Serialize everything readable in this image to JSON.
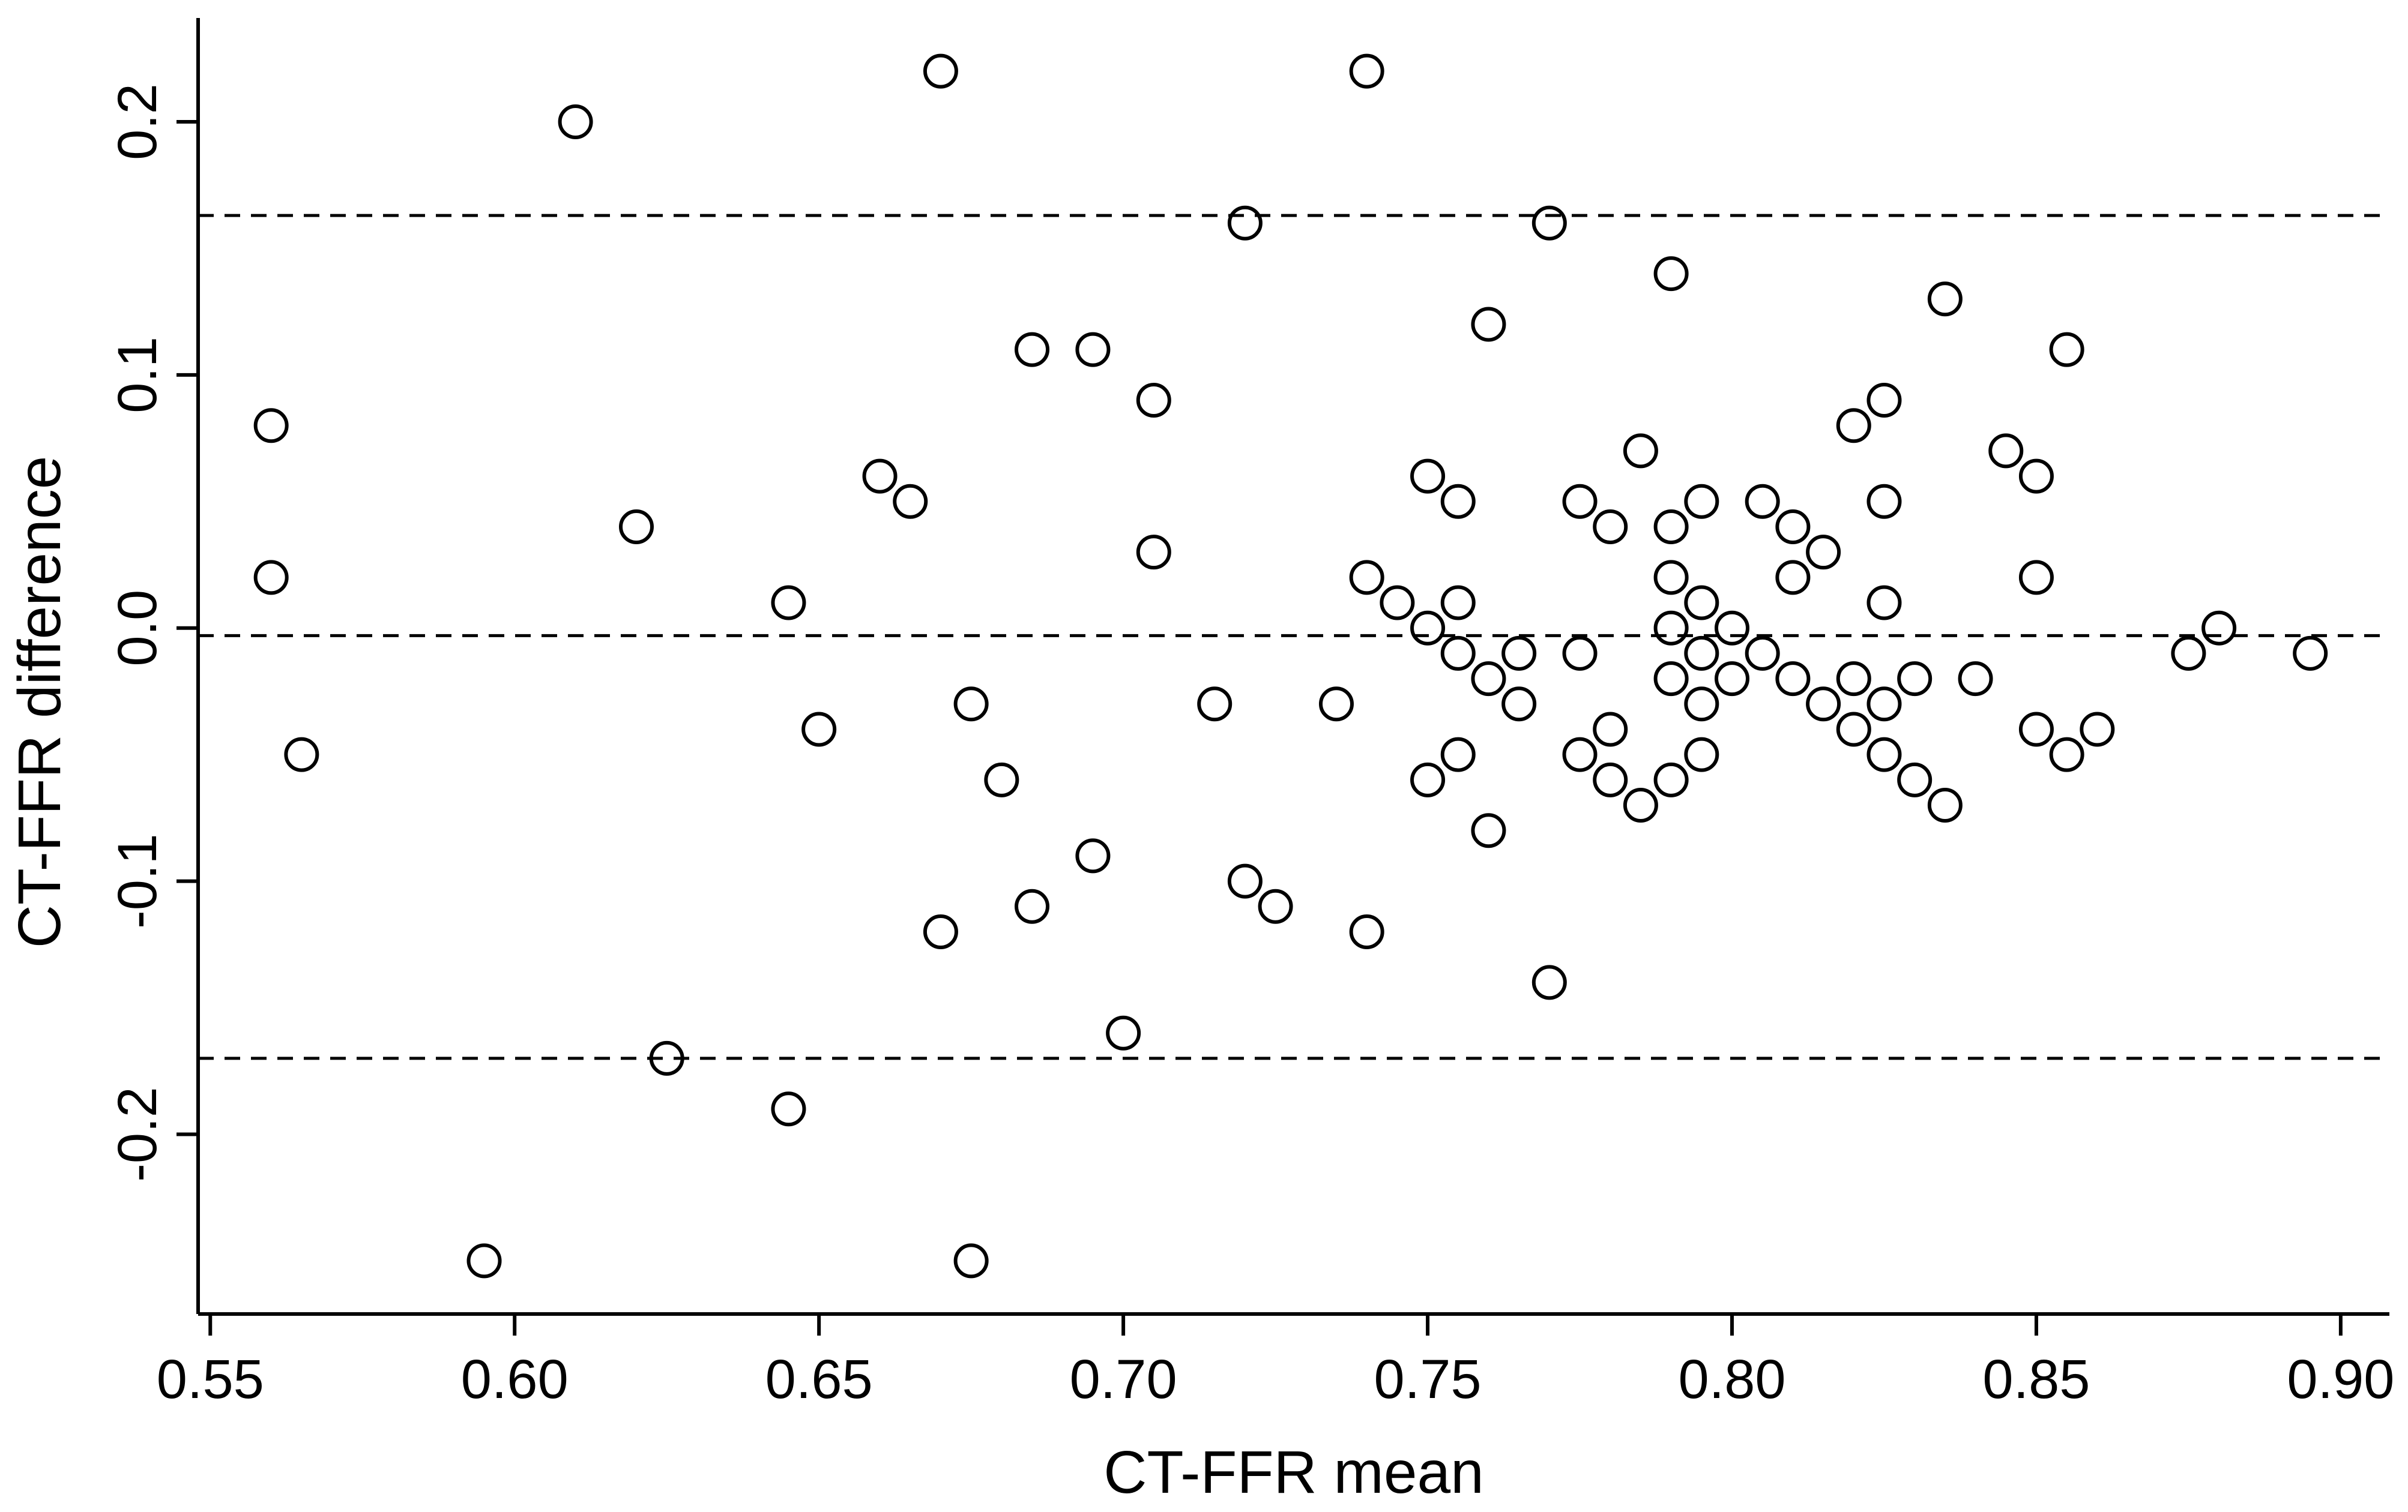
{
  "chart_data": {
    "type": "scatter",
    "title": "",
    "xlabel": "CT-FFR mean",
    "ylabel": "CT-FFR difference",
    "xlim": [
      0.548,
      0.908
    ],
    "ylim": [
      -0.271,
      0.241
    ],
    "x_ticks": [
      0.55,
      0.6,
      0.65,
      0.7,
      0.75,
      0.8,
      0.85,
      0.9
    ],
    "x_tick_labels": [
      "0.55",
      "0.60",
      "0.65",
      "0.70",
      "0.75",
      "0.80",
      "0.85",
      "0.90"
    ],
    "y_ticks": [
      -0.2,
      -0.1,
      0.0,
      0.1,
      0.2
    ],
    "y_tick_labels": [
      "-0.2",
      "-0.1",
      "0.0",
      "0.1",
      "0.2"
    ],
    "grid": false,
    "legend": "none",
    "reference_lines": [
      {
        "kind": "upper limit of agreement",
        "y": 0.163
      },
      {
        "kind": "mean difference",
        "y": -0.003
      },
      {
        "kind": "lower limit of agreement",
        "y": -0.17
      }
    ],
    "points": [
      [
        0.56,
        0.08
      ],
      [
        0.56,
        0.02
      ],
      [
        0.565,
        -0.05
      ],
      [
        0.595,
        -0.25
      ],
      [
        0.61,
        0.2
      ],
      [
        0.62,
        0.04
      ],
      [
        0.625,
        -0.17
      ],
      [
        0.645,
        0.01
      ],
      [
        0.645,
        -0.19
      ],
      [
        0.65,
        -0.04
      ],
      [
        0.66,
        0.06
      ],
      [
        0.665,
        0.05
      ],
      [
        0.67,
        0.22
      ],
      [
        0.67,
        -0.12
      ],
      [
        0.675,
        -0.03
      ],
      [
        0.675,
        -0.25
      ],
      [
        0.68,
        -0.06
      ],
      [
        0.685,
        0.11
      ],
      [
        0.685,
        -0.11
      ],
      [
        0.695,
        0.11
      ],
      [
        0.695,
        -0.09
      ],
      [
        0.7,
        -0.16
      ],
      [
        0.705,
        0.09
      ],
      [
        0.705,
        0.03
      ],
      [
        0.715,
        -0.03
      ],
      [
        0.72,
        0.16
      ],
      [
        0.72,
        -0.1
      ],
      [
        0.725,
        -0.11
      ],
      [
        0.735,
        -0.03
      ],
      [
        0.74,
        0.22
      ],
      [
        0.74,
        0.02
      ],
      [
        0.74,
        -0.12
      ],
      [
        0.745,
        0.01
      ],
      [
        0.75,
        0.06
      ],
      [
        0.75,
        0.0
      ],
      [
        0.75,
        -0.06
      ],
      [
        0.755,
        0.05
      ],
      [
        0.755,
        0.01
      ],
      [
        0.755,
        -0.01
      ],
      [
        0.755,
        -0.05
      ],
      [
        0.76,
        0.12
      ],
      [
        0.76,
        -0.02
      ],
      [
        0.76,
        -0.08
      ],
      [
        0.765,
        -0.01
      ],
      [
        0.765,
        -0.03
      ],
      [
        0.77,
        0.16
      ],
      [
        0.77,
        -0.14
      ],
      [
        0.775,
        0.05
      ],
      [
        0.775,
        -0.01
      ],
      [
        0.775,
        -0.05
      ],
      [
        0.78,
        0.04
      ],
      [
        0.78,
        -0.04
      ],
      [
        0.78,
        -0.06
      ],
      [
        0.785,
        0.07
      ],
      [
        0.785,
        -0.07
      ],
      [
        0.79,
        0.14
      ],
      [
        0.79,
        0.04
      ],
      [
        0.79,
        0.02
      ],
      [
        0.79,
        0.0
      ],
      [
        0.79,
        -0.02
      ],
      [
        0.79,
        -0.06
      ],
      [
        0.795,
        0.05
      ],
      [
        0.795,
        0.01
      ],
      [
        0.795,
        -0.01
      ],
      [
        0.795,
        -0.03
      ],
      [
        0.795,
        -0.05
      ],
      [
        0.8,
        0.0
      ],
      [
        0.8,
        -0.02
      ],
      [
        0.805,
        0.05
      ],
      [
        0.805,
        -0.01
      ],
      [
        0.81,
        0.04
      ],
      [
        0.81,
        0.02
      ],
      [
        0.81,
        -0.02
      ],
      [
        0.815,
        0.03
      ],
      [
        0.815,
        -0.03
      ],
      [
        0.82,
        0.08
      ],
      [
        0.82,
        -0.02
      ],
      [
        0.82,
        -0.04
      ],
      [
        0.825,
        0.09
      ],
      [
        0.825,
        0.05
      ],
      [
        0.825,
        0.01
      ],
      [
        0.825,
        -0.03
      ],
      [
        0.825,
        -0.05
      ],
      [
        0.83,
        -0.02
      ],
      [
        0.83,
        -0.06
      ],
      [
        0.835,
        0.13
      ],
      [
        0.835,
        -0.07
      ],
      [
        0.84,
        -0.02
      ],
      [
        0.845,
        0.07
      ],
      [
        0.85,
        0.06
      ],
      [
        0.85,
        0.02
      ],
      [
        0.85,
        -0.04
      ],
      [
        0.855,
        0.11
      ],
      [
        0.855,
        -0.05
      ],
      [
        0.86,
        -0.04
      ],
      [
        0.875,
        -0.01
      ],
      [
        0.88,
        0.0
      ],
      [
        0.895,
        -0.01
      ]
    ]
  }
}
